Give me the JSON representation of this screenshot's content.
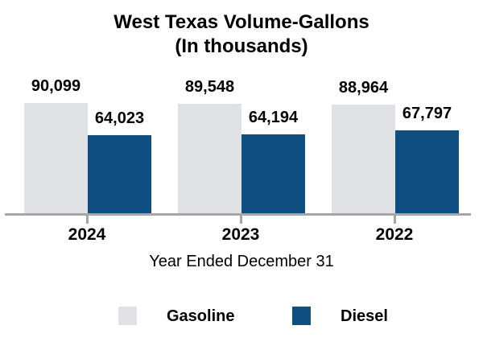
{
  "chart_data": {
    "type": "bar",
    "title": "West Texas Volume-Gallons",
    "subtitle": "(In thousands)",
    "xlabel": "Year Ended December 31",
    "categories": [
      "2024",
      "2023",
      "2022"
    ],
    "series": [
      {
        "name": "Gasoline",
        "color": "#dfe1e5",
        "values": [
          90099,
          89548,
          88964
        ]
      },
      {
        "name": "Diesel",
        "color": "#0e4e81",
        "values": [
          64023,
          64194,
          67797
        ]
      }
    ],
    "ylim": [
      0,
      100000
    ],
    "grid": false,
    "legend_position": "bottom",
    "value_labels_shown": true,
    "groups": [
      {
        "year": "2024",
        "gasoline_value": 90099,
        "gasoline_label": "90,099",
        "diesel_value": 64023,
        "diesel_label": "64,023"
      },
      {
        "year": "2023",
        "gasoline_value": 89548,
        "gasoline_label": "89,548",
        "diesel_value": 64194,
        "diesel_label": "64,194"
      },
      {
        "year": "2022",
        "gasoline_value": 88964,
        "gasoline_label": "88,964",
        "diesel_value": 67797,
        "diesel_label": "67,797"
      }
    ]
  },
  "legend": {
    "items": [
      {
        "label": "Gasoline",
        "color": "#dfe1e5"
      },
      {
        "label": "Diesel",
        "color": "#0e4e81"
      }
    ]
  },
  "colors": {
    "gasoline": "#dfe1e5",
    "diesel": "#0e4e81",
    "axis_line": "#a6a6a6",
    "text": "#000000",
    "background": "#ffffff"
  }
}
